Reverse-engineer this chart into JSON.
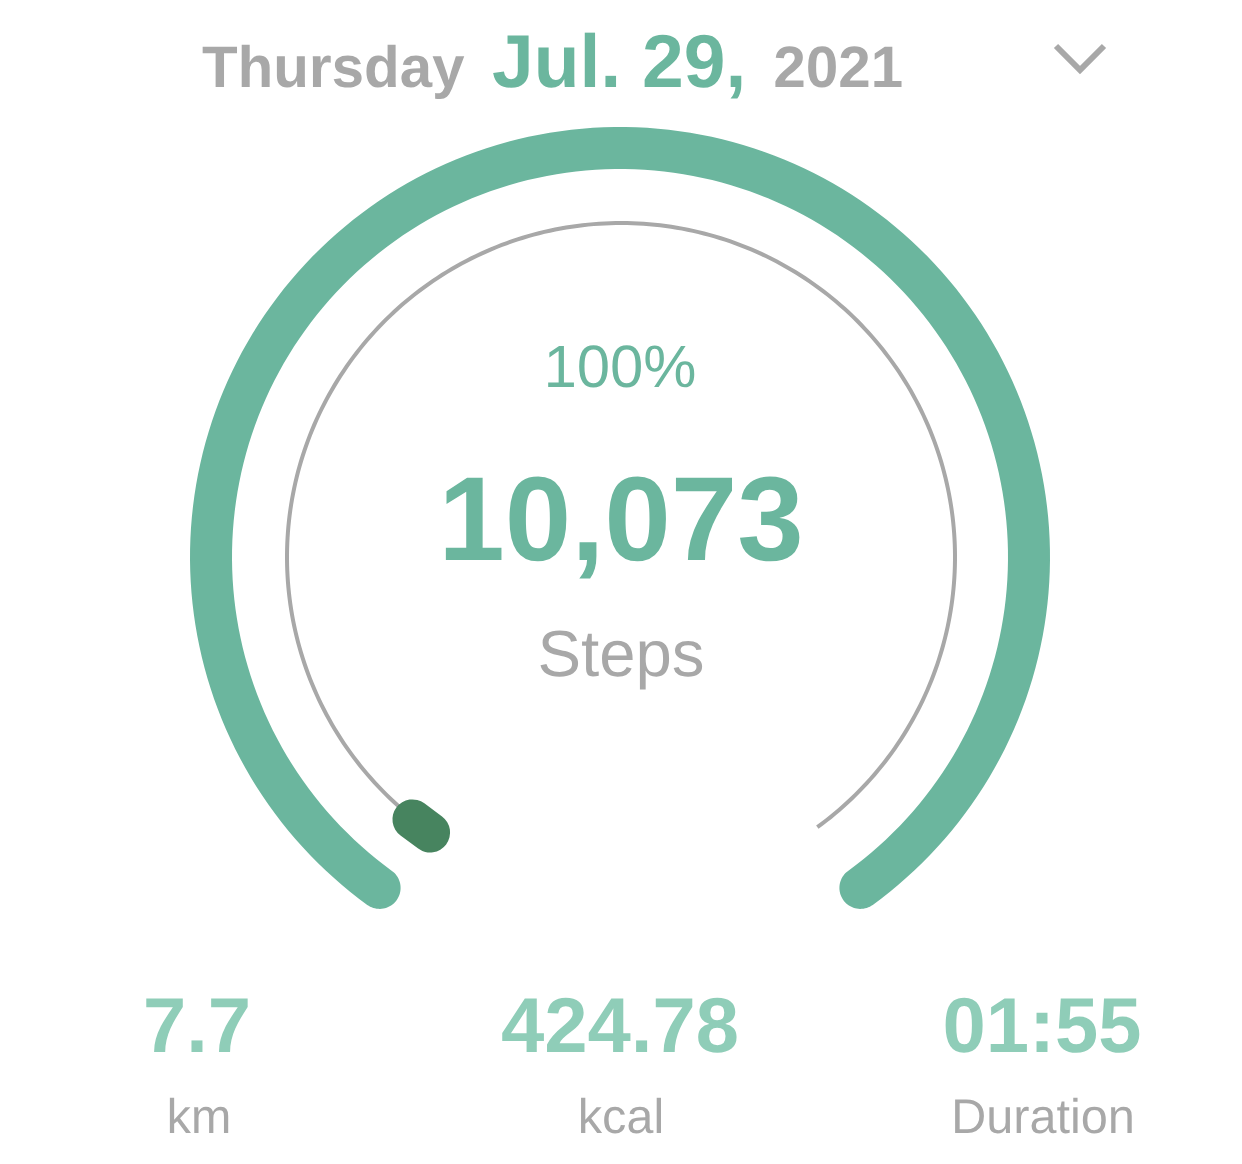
{
  "chart_data": {
    "type": "pie",
    "title": "Thursday Jul. 29, 2021",
    "categories": [
      null
    ],
    "values": [
      100
    ],
    "colors": [
      "#6bb69e"
    ],
    "value_labels": [
      "100%"
    ],
    "annotations": [
      "10,073",
      "Steps",
      "7.7",
      "km",
      "424.78",
      "kcal",
      "01:55",
      "Duration"
    ]
  }
}
